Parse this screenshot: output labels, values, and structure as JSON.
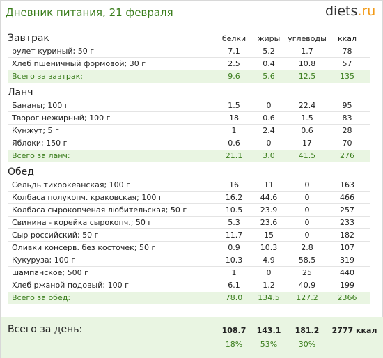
{
  "title": "Дневник питания, 21 февраля",
  "logo": {
    "main": "diets",
    "tld": ".ru"
  },
  "columns": {
    "protein": "белки",
    "fat": "жиры",
    "carbs": "углеводы",
    "kcal": "ккал"
  },
  "breakfast": {
    "title": "Завтрак",
    "items": [
      {
        "name": "рулет куриный; 50 г",
        "protein": "7.1",
        "fat": "5.2",
        "carbs": "1.7",
        "kcal": "78"
      },
      {
        "name": "Хлеб пшеничный формовой; 30 г",
        "protein": "2.5",
        "fat": "0.4",
        "carbs": "10.8",
        "kcal": "57"
      }
    ],
    "total": {
      "label": "Всего за завтрак:",
      "protein": "9.6",
      "fat": "5.6",
      "carbs": "12.5",
      "kcal": "135"
    }
  },
  "lunch": {
    "title": "Ланч",
    "items": [
      {
        "name": "Бананы; 100 г",
        "protein": "1.5",
        "fat": "0",
        "carbs": "22.4",
        "kcal": "95"
      },
      {
        "name": "Творог нежирный; 100 г",
        "protein": "18",
        "fat": "0.6",
        "carbs": "1.5",
        "kcal": "83"
      },
      {
        "name": "Кунжут; 5 г",
        "protein": "1",
        "fat": "2.4",
        "carbs": "0.6",
        "kcal": "28"
      },
      {
        "name": "Яблоки; 150 г",
        "protein": "0.6",
        "fat": "0",
        "carbs": "17",
        "kcal": "70"
      }
    ],
    "total": {
      "label": "Всего за ланч:",
      "protein": "21.1",
      "fat": "3.0",
      "carbs": "41.5",
      "kcal": "276"
    }
  },
  "dinner": {
    "title": "Обед",
    "items": [
      {
        "name": "Сельдь тихоокеанская; 100 г",
        "protein": "16",
        "fat": "11",
        "carbs": "0",
        "kcal": "163"
      },
      {
        "name": "Колбаса полукопч. краковская; 100 г",
        "protein": "16.2",
        "fat": "44.6",
        "carbs": "0",
        "kcal": "466"
      },
      {
        "name": "Колбаса сырокопченая любительская; 50 г",
        "protein": "10.5",
        "fat": "23.9",
        "carbs": "0",
        "kcal": "257"
      },
      {
        "name": "Свинина - корейка сырокопч.; 50 г",
        "protein": "5.3",
        "fat": "23.6",
        "carbs": "0",
        "kcal": "233"
      },
      {
        "name": "Сыр российский; 50 г",
        "protein": "11.7",
        "fat": "15",
        "carbs": "0",
        "kcal": "182"
      },
      {
        "name": "Оливки консерв. без косточек; 50 г",
        "protein": "0.9",
        "fat": "10.3",
        "carbs": "2.8",
        "kcal": "107"
      },
      {
        "name": "Кукуруза; 100 г",
        "protein": "10.3",
        "fat": "4.9",
        "carbs": "58.5",
        "kcal": "319"
      },
      {
        "name": "шампанское; 500 г",
        "protein": "1",
        "fat": "0",
        "carbs": "25",
        "kcal": "440"
      },
      {
        "name": "Хлеб ржаной подовый; 100 г",
        "protein": "6.1",
        "fat": "1.2",
        "carbs": "40.9",
        "kcal": "199"
      }
    ],
    "total": {
      "label": "Всего за обед:",
      "protein": "78.0",
      "fat": "134.5",
      "carbs": "127.2",
      "kcal": "2366"
    }
  },
  "daily": {
    "label": "Всего за день:",
    "protein": "108.7",
    "fat": "143.1",
    "carbs": "181.2",
    "kcal": "2777 ккал",
    "protein_pct": "18%",
    "fat_pct": "53%",
    "carbs_pct": "30%"
  },
  "colors": {
    "accent_green": "#3a7d1c",
    "total_bg": "#e9f5e2",
    "logo_orange": "#f29a17"
  }
}
